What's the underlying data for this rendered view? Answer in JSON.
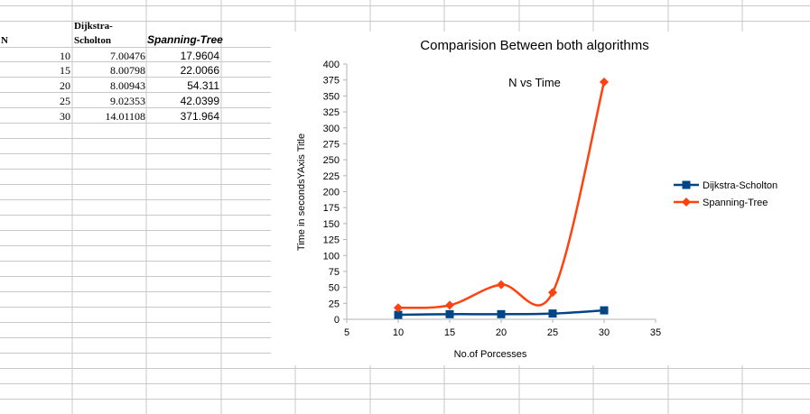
{
  "sheet": {
    "headers": {
      "n": "N",
      "dijkstra_line1": "Dijkstra-",
      "dijkstra_line2": "Scholton",
      "spanning": "Spanning-Tree"
    },
    "rows": [
      {
        "n": "10",
        "dijkstra": "7.00476",
        "spanning": "17.9604"
      },
      {
        "n": "15",
        "dijkstra": "8.00798",
        "spanning": "22.0066"
      },
      {
        "n": "20",
        "dijkstra": "8.00943",
        "spanning": "54.311"
      },
      {
        "n": "25",
        "dijkstra": "9.02353",
        "spanning": "42.0399"
      },
      {
        "n": "30",
        "dijkstra": "14.01108",
        "spanning": "371.964"
      }
    ]
  },
  "chart_data": {
    "type": "line",
    "title": "Comparision Between both algorithms",
    "subtitle": "N vs Time",
    "xlabel": "No.of Porcesses",
    "ylabel": "Time in secondsYAxis Title",
    "xlim": [
      5,
      35
    ],
    "ylim": [
      0,
      400
    ],
    "x_ticks": [
      5,
      10,
      15,
      20,
      25,
      30,
      35
    ],
    "y_ticks": [
      0,
      25,
      50,
      75,
      100,
      125,
      150,
      175,
      200,
      225,
      250,
      275,
      300,
      325,
      350,
      375,
      400
    ],
    "grid": false,
    "legend_position": "right",
    "series": [
      {
        "name": "Dijkstra-Scholton",
        "color": "#004586",
        "marker": "square",
        "x": [
          10,
          15,
          20,
          25,
          30
        ],
        "y": [
          7.00476,
          8.00798,
          8.00943,
          9.02353,
          14.01108
        ]
      },
      {
        "name": "Spanning-Tree",
        "color": "#ff420e",
        "marker": "diamond",
        "x": [
          10,
          15,
          20,
          25,
          30
        ],
        "y": [
          17.9604,
          22.0066,
          54.311,
          42.0399,
          371.964
        ]
      }
    ]
  }
}
